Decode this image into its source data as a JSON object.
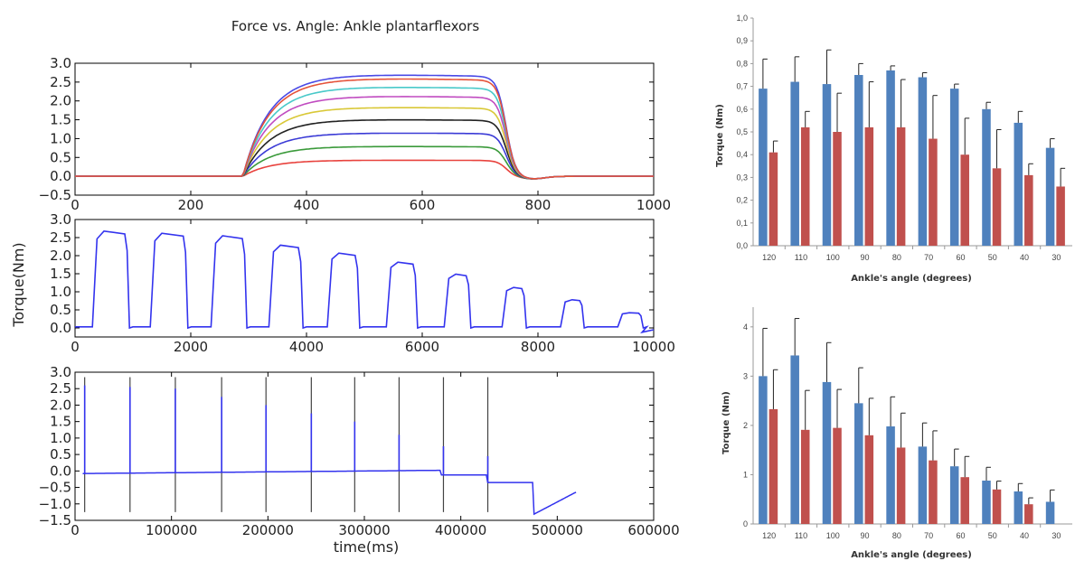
{
  "chart_data": [
    {
      "type": "line",
      "title": "Force vs. Angle: Ankle plantarflexors",
      "xlim": [
        0,
        1000
      ],
      "ylim": [
        -0.5,
        3.0
      ],
      "xticks": [
        "0",
        "200",
        "400",
        "600",
        "800",
        "1000"
      ],
      "yticks": [
        "−0.5",
        "0.0",
        "0.5",
        "1.0",
        "1.5",
        "2.0",
        "2.5",
        "3.0"
      ],
      "series": [
        {
          "color": "#e8423d",
          "plateau": 0.42
        },
        {
          "color": "#3a9a3a",
          "plateau": 0.78
        },
        {
          "color": "#3b3bd6",
          "plateau": 1.13
        },
        {
          "color": "#222222",
          "plateau": 1.48
        },
        {
          "color": "#d9c837",
          "plateau": 1.8
        },
        {
          "color": "#c04bc0",
          "plateau": 2.09
        },
        {
          "color": "#49c9c9",
          "plateau": 2.33
        },
        {
          "color": "#4a4ae6",
          "plateau": 2.65
        },
        {
          "color": "#e5533a",
          "plateau": 2.55
        }
      ]
    },
    {
      "type": "line",
      "ylabel": "Torque(Nm)",
      "xlim": [
        0,
        10000
      ],
      "ylim": [
        -0.25,
        3.0
      ],
      "xticks": [
        "0",
        "2000",
        "4000",
        "6000",
        "8000",
        "10000"
      ],
      "yticks": [
        "0.0",
        "0.5",
        "1.0",
        "1.5",
        "2.0",
        "2.5",
        "3.0"
      ],
      "color": "#3333ee",
      "pulses": [
        {
          "start": 300,
          "end": 900,
          "peak": 2.68
        },
        {
          "start": 1300,
          "end": 1910,
          "peak": 2.62
        },
        {
          "start": 2350,
          "end": 2930,
          "peak": 2.55
        },
        {
          "start": 3350,
          "end": 3900,
          "peak": 2.29
        },
        {
          "start": 4360,
          "end": 4880,
          "peak": 2.07
        },
        {
          "start": 5380,
          "end": 5880,
          "peak": 1.82
        },
        {
          "start": 6380,
          "end": 6800,
          "peak": 1.49
        },
        {
          "start": 7380,
          "end": 7760,
          "peak": 1.12
        },
        {
          "start": 8390,
          "end": 8760,
          "peak": 0.78
        },
        {
          "start": 9380,
          "end": 9780,
          "peak": 0.42
        }
      ]
    },
    {
      "type": "line",
      "xlabel": "time(ms)",
      "xlim": [
        0,
        600000
      ],
      "ylim": [
        -1.5,
        3.0
      ],
      "xticks": [
        "0",
        "100000",
        "200000",
        "300000",
        "400000",
        "500000",
        "600000"
      ],
      "yticks": [
        "−1.5",
        "−1.0",
        "−0.5",
        "0.0",
        "0.5",
        "1.0",
        "1.5",
        "2.0",
        "2.5",
        "3.0"
      ],
      "color": "#3333ee",
      "markers": [
        10000,
        57000,
        104000,
        152000,
        198000,
        245000,
        290000,
        336000,
        382000,
        428000
      ],
      "spikes": [
        {
          "x": 10000,
          "peak": 2.6
        },
        {
          "x": 57000,
          "peak": 2.55
        },
        {
          "x": 104000,
          "peak": 2.5
        },
        {
          "x": 152000,
          "peak": 2.25
        },
        {
          "x": 198000,
          "peak": 2.0
        },
        {
          "x": 245000,
          "peak": 1.75
        },
        {
          "x": 290000,
          "peak": 1.5
        },
        {
          "x": 336000,
          "peak": 1.1
        },
        {
          "x": 382000,
          "peak": 0.75
        },
        {
          "x": 428000,
          "peak": 0.45
        }
      ]
    },
    {
      "type": "bar",
      "xlabel": "Ankle's angle (degrees)",
      "ylabel": "Torque (Nm)",
      "categories": [
        "120",
        "110",
        "100",
        "90",
        "80",
        "70",
        "60",
        "50",
        "40",
        "30"
      ],
      "ylim": [
        0,
        1.0
      ],
      "yticks": [
        "0,0",
        "0,1",
        "0,2",
        "0,3",
        "0,4",
        "0,5",
        "0,6",
        "0,7",
        "0,8",
        "0,9",
        "1,0"
      ],
      "series": [
        {
          "color": "#4f81bd",
          "values": [
            0.69,
            0.72,
            0.71,
            0.75,
            0.77,
            0.74,
            0.69,
            0.6,
            0.54,
            0.43
          ],
          "errors": [
            0.13,
            0.11,
            0.15,
            0.05,
            0.02,
            0.02,
            0.02,
            0.03,
            0.05,
            0.04
          ]
        },
        {
          "color": "#c0504d",
          "values": [
            0.41,
            0.52,
            0.5,
            0.52,
            0.52,
            0.47,
            0.4,
            0.34,
            0.31,
            0.26
          ],
          "errors": [
            0.05,
            0.07,
            0.17,
            0.2,
            0.21,
            0.19,
            0.16,
            0.17,
            0.05,
            0.08
          ]
        }
      ]
    },
    {
      "type": "bar",
      "xlabel": "Ankle's angle (degrees)",
      "ylabel": "Torque (Nm)",
      "categories": [
        "120",
        "110",
        "100",
        "90",
        "80",
        "70",
        "60",
        "50",
        "40",
        "30"
      ],
      "ylim": [
        0,
        4.4
      ],
      "yticks": [
        "0",
        "1",
        "2",
        "3",
        "4"
      ],
      "series": [
        {
          "color": "#4f81bd",
          "values": [
            3.0,
            3.42,
            2.88,
            2.45,
            1.98,
            1.57,
            1.17,
            0.88,
            0.66,
            0.45
          ],
          "errors": [
            0.97,
            0.75,
            0.8,
            0.72,
            0.6,
            0.48,
            0.35,
            0.27,
            0.16,
            0.24
          ]
        },
        {
          "color": "#c0504d",
          "values": [
            2.33,
            1.91,
            1.95,
            1.8,
            1.55,
            1.29,
            0.95,
            0.7,
            0.4,
            0.0
          ],
          "errors": [
            0.8,
            0.8,
            0.78,
            0.75,
            0.7,
            0.6,
            0.42,
            0.17,
            0.13,
            0.0
          ]
        }
      ]
    }
  ]
}
